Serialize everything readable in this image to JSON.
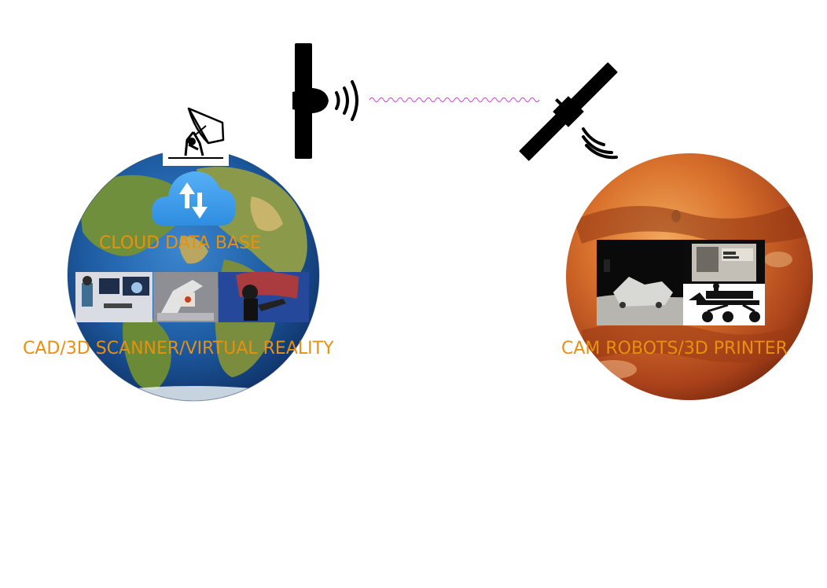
{
  "labels": {
    "cloud": "CLOUD DATA BASE",
    "earth_tools": "CAD/3D SCANNER/VIRTUAL REALITY",
    "mars_tools": "CAM ROBOTS/3D PRINTER"
  },
  "colors": {
    "label": "#e8900f",
    "wave": "#cc44cc",
    "cloud": "#3d9be9",
    "earth_ocean": "#1f5fa8",
    "earth_land": "#6e8f3a",
    "mars": "#c8581e",
    "icon": "#000000"
  },
  "icons": {
    "ground_station": "satellite-dish-icon",
    "transmitter": "transmitter-tower-icon",
    "satellite": "satellite-icon",
    "cloud": "cloud-upload-download-icon"
  }
}
